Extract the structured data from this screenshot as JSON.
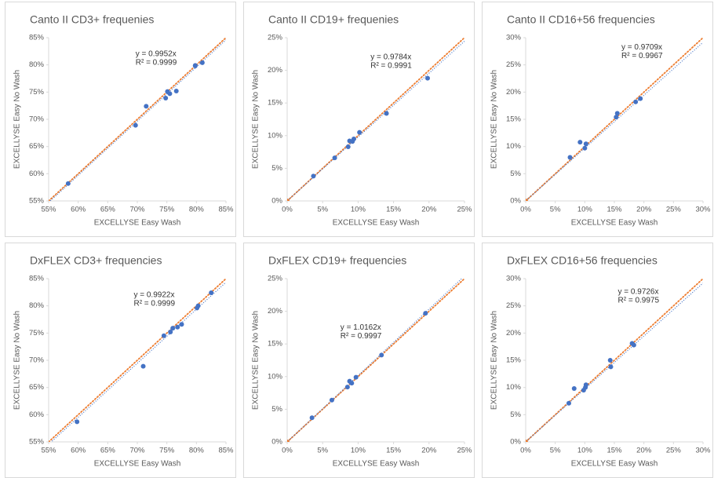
{
  "chart_data": [
    {
      "type": "scatter",
      "title": "Canto II CD3+ frequenies",
      "x_label": "EXCELLYSE Easy Wash",
      "y_label": "EXCELLYSE Easy No Wash",
      "xlim": [
        55,
        85
      ],
      "ylim": [
        55,
        85
      ],
      "xticks": [
        {
          "value": 55,
          "label": "55%"
        },
        {
          "value": 60,
          "label": "60%"
        },
        {
          "value": 65,
          "label": "65%"
        },
        {
          "value": 70,
          "label": "70%"
        },
        {
          "value": 75,
          "label": "75%"
        },
        {
          "value": 80,
          "label": "80%"
        },
        {
          "value": 85,
          "label": "85%"
        }
      ],
      "yticks": [
        {
          "value": 55,
          "label": "55%"
        },
        {
          "value": 60,
          "label": "60%"
        },
        {
          "value": 65,
          "label": "65%"
        },
        {
          "value": 70,
          "label": "70%"
        },
        {
          "value": 75,
          "label": "75%"
        },
        {
          "value": 80,
          "label": "80%"
        },
        {
          "value": 85,
          "label": "85%"
        }
      ],
      "series": [
        {
          "color": "#4472c4",
          "x": [
            58.3,
            69.7,
            71.5,
            74.8,
            75.1,
            75.5,
            76.6,
            79.8,
            79.8,
            81.0
          ],
          "values": [
            58.2,
            68.9,
            72.4,
            73.9,
            75.1,
            74.7,
            75.2,
            79.8,
            79.9,
            80.4
          ]
        }
      ],
      "trendline": {
        "slope": 0.9952,
        "label": "y = 0.9952x",
        "r2_label": "R² = 0.9999",
        "color": "#4472c4"
      },
      "identity_line_color": "#ed7d31"
    },
    {
      "type": "scatter",
      "title": "Canto II CD19+ frequenies",
      "x_label": "EXCELLYSE Easy Wash",
      "y_label": "EXCELLYSE Easy No Wash",
      "xlim": [
        0,
        25
      ],
      "ylim": [
        0,
        25
      ],
      "xticks": [
        {
          "value": 0,
          "label": "0%"
        },
        {
          "value": 5,
          "label": "5%"
        },
        {
          "value": 10,
          "label": "10%"
        },
        {
          "value": 15,
          "label": "15%"
        },
        {
          "value": 20,
          "label": "20%"
        },
        {
          "value": 25,
          "label": "25%"
        }
      ],
      "yticks": [
        {
          "value": 0,
          "label": "0%"
        },
        {
          "value": 5,
          "label": "5%"
        },
        {
          "value": 10,
          "label": "10%"
        },
        {
          "value": 15,
          "label": "15%"
        },
        {
          "value": 20,
          "label": "20%"
        },
        {
          "value": 25,
          "label": "25%"
        }
      ],
      "series": [
        {
          "color": "#4472c4",
          "x": [
            3.7,
            6.7,
            8.6,
            8.8,
            9.2,
            9.4,
            10.2,
            14.0,
            19.8
          ],
          "values": [
            3.8,
            6.6,
            8.3,
            9.2,
            9.1,
            9.5,
            10.5,
            13.4,
            18.8
          ]
        },
        {
          "color": "#ed7d31",
          "x": [
            0
          ],
          "values": [
            0
          ]
        }
      ],
      "trendline": {
        "slope": 0.9784,
        "label": "y = 0.9784x",
        "r2_label": "R² = 0.9991",
        "color": "#4472c4"
      },
      "identity_line_color": "#ed7d31"
    },
    {
      "type": "scatter",
      "title": "Canto II CD16+56 frequencies",
      "x_label": "EXCELLYSE Easy Wash",
      "y_label": "EXCELLYSE Easy No Wash",
      "xlim": [
        0,
        30
      ],
      "ylim": [
        0,
        30
      ],
      "xticks": [
        {
          "value": 0,
          "label": "0%"
        },
        {
          "value": 5,
          "label": "5%"
        },
        {
          "value": 10,
          "label": "10%"
        },
        {
          "value": 15,
          "label": "15%"
        },
        {
          "value": 20,
          "label": "20%"
        },
        {
          "value": 25,
          "label": "25%"
        },
        {
          "value": 30,
          "label": "30%"
        }
      ],
      "yticks": [
        {
          "value": 0,
          "label": "0%"
        },
        {
          "value": 5,
          "label": "5%"
        },
        {
          "value": 10,
          "label": "10%"
        },
        {
          "value": 15,
          "label": "15%"
        },
        {
          "value": 20,
          "label": "20%"
        },
        {
          "value": 25,
          "label": "25%"
        },
        {
          "value": 30,
          "label": "30%"
        }
      ],
      "series": [
        {
          "color": "#4472c4",
          "x": [
            7.5,
            9.2,
            10.0,
            10.2,
            15.3,
            15.5,
            18.6,
            19.4
          ],
          "values": [
            8.0,
            10.8,
            9.7,
            10.5,
            15.4,
            16.1,
            18.2,
            18.8
          ]
        },
        {
          "color": "#ed7d31",
          "x": [
            0
          ],
          "values": [
            0
          ]
        }
      ],
      "trendline": {
        "slope": 0.9709,
        "label": "y = 0.9709x",
        "r2_label": "R² = 0.9967",
        "color": "#4472c4"
      },
      "identity_line_color": "#ed7d31"
    },
    {
      "type": "scatter",
      "title": "DxFLEX CD3+ frequencies",
      "x_label": "EXCELLYSE Easy Wash",
      "y_label": "EXCELLYSE Easy No Wash",
      "xlim": [
        55,
        85
      ],
      "ylim": [
        55,
        85
      ],
      "xticks": [
        {
          "value": 55,
          "label": "55%"
        },
        {
          "value": 60,
          "label": "60%"
        },
        {
          "value": 65,
          "label": "65%"
        },
        {
          "value": 70,
          "label": "70%"
        },
        {
          "value": 75,
          "label": "75%"
        },
        {
          "value": 80,
          "label": "80%"
        },
        {
          "value": 85,
          "label": "85%"
        }
      ],
      "yticks": [
        {
          "value": 55,
          "label": "55%"
        },
        {
          "value": 60,
          "label": "60%"
        },
        {
          "value": 65,
          "label": "65%"
        },
        {
          "value": 70,
          "label": "70%"
        },
        {
          "value": 75,
          "label": "75%"
        },
        {
          "value": 80,
          "label": "80%"
        },
        {
          "value": 85,
          "label": "85%"
        }
      ],
      "series": [
        {
          "color": "#4472c4",
          "x": [
            59.8,
            71.0,
            74.5,
            75.6,
            76.0,
            76.8,
            77.5,
            80.1,
            80.3,
            82.5
          ],
          "values": [
            58.7,
            68.9,
            74.5,
            75.2,
            75.9,
            76.1,
            76.6,
            79.6,
            80.0,
            82.4
          ]
        }
      ],
      "trendline": {
        "slope": 0.9922,
        "label": "y = 0.9922x",
        "r2_label": "R² = 0.9999",
        "color": "#4472c4"
      },
      "identity_line_color": "#ed7d31"
    },
    {
      "type": "scatter",
      "title": "DxFLEX CD19+ frequencies",
      "x_label": "EXCELLYSE Easy Wash",
      "y_label": "EXCELLYSE Easy No Wash",
      "xlim": [
        0,
        25
      ],
      "ylim": [
        0,
        25
      ],
      "xticks": [
        {
          "value": 0,
          "label": "0%"
        },
        {
          "value": 5,
          "label": "5%"
        },
        {
          "value": 10,
          "label": "10%"
        },
        {
          "value": 15,
          "label": "15%"
        },
        {
          "value": 20,
          "label": "20%"
        },
        {
          "value": 25,
          "label": "25%"
        }
      ],
      "yticks": [
        {
          "value": 0,
          "label": "0%"
        },
        {
          "value": 5,
          "label": "5%"
        },
        {
          "value": 10,
          "label": "10%"
        },
        {
          "value": 15,
          "label": "15%"
        },
        {
          "value": 20,
          "label": "20%"
        },
        {
          "value": 25,
          "label": "25%"
        }
      ],
      "series": [
        {
          "color": "#4472c4",
          "x": [
            3.5,
            6.3,
            8.5,
            8.8,
            9.1,
            9.7,
            13.3,
            19.5
          ],
          "values": [
            3.7,
            6.4,
            8.4,
            9.3,
            9.0,
            9.9,
            13.3,
            19.7
          ]
        },
        {
          "color": "#ed7d31",
          "x": [
            0
          ],
          "values": [
            0
          ]
        }
      ],
      "trendline": {
        "slope": 1.0162,
        "label": "y = 1.0162x",
        "r2_label": "R² = 0.9997",
        "color": "#4472c4"
      },
      "identity_line_color": "#ed7d31"
    },
    {
      "type": "scatter",
      "title": "DxFLEX CD16+56 frequencies",
      "x_label": "EXCELLYSE Easy Wash",
      "y_label": "EXCELLYSE Easy No Wash",
      "xlim": [
        0,
        30
      ],
      "ylim": [
        0,
        30
      ],
      "xticks": [
        {
          "value": 0,
          "label": "0%"
        },
        {
          "value": 5,
          "label": "5%"
        },
        {
          "value": 10,
          "label": "10%"
        },
        {
          "value": 15,
          "label": "15%"
        },
        {
          "value": 20,
          "label": "20%"
        },
        {
          "value": 25,
          "label": "25%"
        },
        {
          "value": 30,
          "label": "30%"
        }
      ],
      "yticks": [
        {
          "value": 0,
          "label": "0%"
        },
        {
          "value": 5,
          "label": "5%"
        },
        {
          "value": 10,
          "label": "10%"
        },
        {
          "value": 15,
          "label": "15%"
        },
        {
          "value": 20,
          "label": "20%"
        },
        {
          "value": 25,
          "label": "25%"
        },
        {
          "value": 30,
          "label": "30%"
        }
      ],
      "series": [
        {
          "color": "#4472c4",
          "x": [
            7.3,
            8.2,
            9.8,
            10.1,
            10.2,
            14.4,
            14.3,
            18.0,
            18.3
          ],
          "values": [
            7.1,
            9.8,
            9.5,
            10.0,
            10.5,
            13.8,
            15.0,
            18.1,
            17.8
          ]
        },
        {
          "color": "#ed7d31",
          "x": [
            0
          ],
          "values": [
            0
          ]
        }
      ],
      "trendline": {
        "slope": 0.9726,
        "label": "y = 0.9726x",
        "r2_label": "R² = 0.9975",
        "color": "#4472c4"
      },
      "identity_line_color": "#ed7d31"
    }
  ]
}
